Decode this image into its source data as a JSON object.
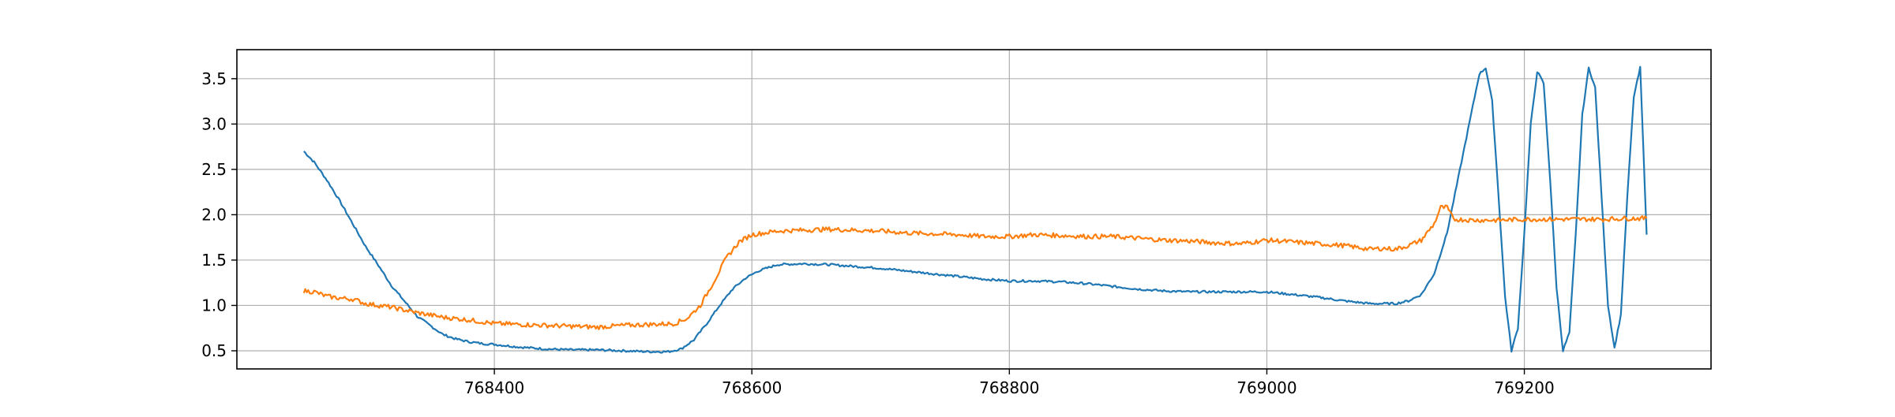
{
  "chart_data": {
    "type": "line",
    "title": "",
    "xlabel": "",
    "ylabel": "",
    "xlim": [
      768200,
      769345
    ],
    "ylim": [
      0.3,
      3.82
    ],
    "grid": true,
    "x_ticks": [
      768400,
      768600,
      768800,
      769000,
      769200
    ],
    "x_tick_labels": [
      "768400",
      "768600",
      "768800",
      "769000",
      "769200"
    ],
    "y_ticks": [
      0.5,
      1.0,
      1.5,
      2.0,
      2.5,
      3.0,
      3.5
    ],
    "y_tick_labels": [
      "0.5",
      "1.0",
      "1.5",
      "2.0",
      "2.5",
      "3.0",
      "3.5"
    ],
    "colors": [
      "#1f77b4",
      "#ff7f0e"
    ],
    "series": [
      {
        "color": "#1f77b4",
        "x": [
          768252,
          768260,
          768270,
          768280,
          768290,
          768300,
          768310,
          768320,
          768330,
          768340,
          768350,
          768360,
          768370,
          768380,
          768390,
          768400,
          768420,
          768440,
          768460,
          768480,
          768500,
          768520,
          768535,
          768545,
          768555,
          768565,
          768575,
          768585,
          768595,
          768605,
          768620,
          768640,
          768660,
          768680,
          768700,
          768720,
          768740,
          768760,
          768780,
          768800,
          768820,
          768840,
          768860,
          768880,
          768900,
          768920,
          768940,
          768960,
          768980,
          769000,
          769020,
          769040,
          769060,
          769080,
          769090,
          769100,
          769110,
          769120,
          769130,
          769140,
          769150,
          769160,
          769165,
          769170,
          769175,
          769180,
          769185,
          769190,
          769195,
          769200,
          769205,
          769210,
          769215,
          769220,
          769225,
          769230,
          769235,
          769240,
          769245,
          769250,
          769255,
          769260,
          769265,
          769270,
          769275,
          769280,
          769285,
          769290,
          769295
        ],
        "y": [
          2.7,
          2.58,
          2.38,
          2.15,
          1.9,
          1.65,
          1.44,
          1.22,
          1.05,
          0.88,
          0.78,
          0.68,
          0.63,
          0.6,
          0.58,
          0.57,
          0.54,
          0.52,
          0.51,
          0.51,
          0.5,
          0.49,
          0.49,
          0.52,
          0.62,
          0.8,
          1.0,
          1.18,
          1.3,
          1.38,
          1.45,
          1.46,
          1.45,
          1.43,
          1.41,
          1.38,
          1.35,
          1.32,
          1.29,
          1.27,
          1.27,
          1.26,
          1.24,
          1.21,
          1.18,
          1.16,
          1.15,
          1.15,
          1.15,
          1.15,
          1.12,
          1.09,
          1.05,
          1.02,
          1.02,
          1.02,
          1.05,
          1.12,
          1.35,
          1.8,
          2.5,
          3.2,
          3.55,
          3.62,
          3.25,
          2.2,
          1.1,
          0.5,
          0.75,
          1.8,
          3.0,
          3.58,
          3.45,
          2.4,
          1.2,
          0.5,
          0.7,
          1.8,
          3.1,
          3.62,
          3.4,
          2.2,
          1.0,
          0.53,
          0.9,
          2.2,
          3.3,
          3.62,
          1.78
        ]
      },
      {
        "color": "#ff7f0e",
        "x": [
          768252,
          768260,
          768270,
          768280,
          768290,
          768300,
          768320,
          768340,
          768360,
          768380,
          768400,
          768420,
          768440,
          768460,
          768480,
          768500,
          768520,
          768540,
          768550,
          768560,
          768570,
          768580,
          768590,
          768600,
          768620,
          768640,
          768660,
          768680,
          768700,
          768720,
          768740,
          768760,
          768780,
          768800,
          768820,
          768840,
          768860,
          768880,
          768900,
          768920,
          768940,
          768960,
          768980,
          769000,
          769020,
          769040,
          769060,
          769080,
          769090,
          769100,
          769110,
          769120,
          769130,
          769135,
          769140,
          769145,
          769160,
          769180,
          769200,
          769220,
          769240,
          769260,
          769280,
          769295
        ],
        "y": [
          1.16,
          1.15,
          1.1,
          1.08,
          1.07,
          1.02,
          0.98,
          0.92,
          0.87,
          0.84,
          0.8,
          0.79,
          0.78,
          0.77,
          0.76,
          0.78,
          0.79,
          0.8,
          0.86,
          1.0,
          1.25,
          1.52,
          1.7,
          1.78,
          1.82,
          1.83,
          1.84,
          1.83,
          1.82,
          1.8,
          1.79,
          1.78,
          1.76,
          1.76,
          1.78,
          1.77,
          1.76,
          1.76,
          1.74,
          1.72,
          1.71,
          1.69,
          1.68,
          1.72,
          1.7,
          1.68,
          1.66,
          1.62,
          1.63,
          1.62,
          1.66,
          1.72,
          1.9,
          2.08,
          2.08,
          1.95,
          1.94,
          1.94,
          1.95,
          1.95,
          1.95,
          1.95,
          1.96,
          1.96
        ]
      }
    ]
  }
}
